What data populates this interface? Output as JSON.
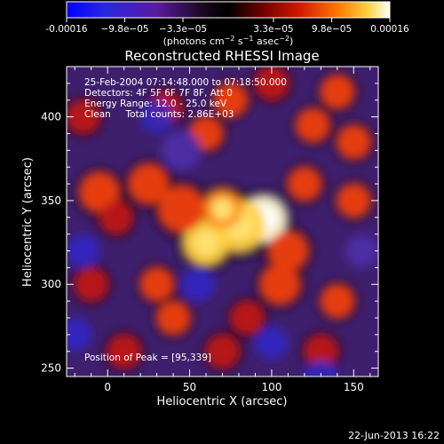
{
  "colorbar": {
    "ticks": [
      "-0.00016",
      "−9.8e−05",
      "−3.3e−05",
      "3.3e−05",
      "9.8e−05",
      "0.00016"
    ],
    "units_prefix": "(photons cm",
    "units_mid": " s",
    "units_suffix": " asec",
    "units_close": ")",
    "units_exp1": "−2",
    "units_exp2": "−1",
    "units_exp3": "−2",
    "vmin": -0.00016,
    "vmax": 0.00016,
    "colormap": [
      "#1a1aff",
      "#3a20c8",
      "#5a1a9a",
      "#2a0a30",
      "#000000",
      "#6a0000",
      "#c01000",
      "#ff5a00",
      "#ffaa20",
      "#ffffff"
    ]
  },
  "footer": {
    "date": "22-Jun-2013 16:22"
  },
  "chart_data": {
    "type": "heatmap",
    "title": "Reconstructed RHESSI Image",
    "xlabel": "Heliocentric X (arcsec)",
    "ylabel": "Heliocentric Y (arcsec)",
    "xlim": [
      -25,
      165
    ],
    "ylim": [
      245,
      430
    ],
    "xticks": [
      0,
      50,
      100,
      150
    ],
    "yticks": [
      250,
      300,
      350,
      400
    ],
    "annotations": [
      "25-Feb-2004 07:14:48.000 to 07:18:50.000",
      "Detectors: 4F 5F 6F 7F 8F, Att 0",
      "Energy Range: 12.0 - 25.0 keV",
      "Clean     Total counts: 2.86E+03"
    ],
    "peak_label": "Position of Peak = [95,339]",
    "peak": [
      95,
      339
    ],
    "sources": [
      [
        95,
        339,
        1.0,
        14
      ],
      [
        80,
        335,
        0.85,
        16
      ],
      [
        60,
        325,
        0.75,
        14
      ],
      [
        70,
        345,
        0.7,
        12
      ],
      [
        45,
        345,
        0.55,
        14
      ],
      [
        25,
        360,
        0.45,
        12
      ],
      [
        -5,
        355,
        0.45,
        12
      ],
      [
        5,
        340,
        0.35,
        10
      ],
      [
        110,
        320,
        0.55,
        12
      ],
      [
        105,
        300,
        0.5,
        12
      ],
      [
        120,
        360,
        0.5,
        10
      ],
      [
        125,
        395,
        0.55,
        10
      ],
      [
        140,
        415,
        0.5,
        10
      ],
      [
        150,
        385,
        0.45,
        10
      ],
      [
        150,
        350,
        0.45,
        10
      ],
      [
        140,
        290,
        0.45,
        10
      ],
      [
        60,
        390,
        0.45,
        10
      ],
      [
        75,
        410,
        0.45,
        10
      ],
      [
        35,
        405,
        0.3,
        10
      ],
      [
        -15,
        400,
        0.3,
        10
      ],
      [
        -10,
        300,
        0.3,
        10
      ],
      [
        30,
        300,
        0.45,
        10
      ],
      [
        40,
        280,
        0.45,
        10
      ],
      [
        85,
        280,
        0.35,
        10
      ],
      [
        10,
        260,
        0.3,
        10
      ],
      [
        70,
        260,
        0.35,
        10
      ],
      [
        130,
        260,
        0.35,
        10
      ],
      [
        100,
        420,
        0.3,
        10
      ],
      [
        30,
        400,
        -0.35,
        10
      ],
      [
        55,
        300,
        -0.25,
        10
      ],
      [
        -15,
        320,
        -0.25,
        10
      ],
      [
        130,
        245,
        -0.3,
        10
      ],
      [
        45,
        380,
        -0.2,
        12
      ],
      [
        100,
        265,
        -0.25,
        10
      ],
      [
        -20,
        270,
        -0.25,
        10
      ],
      [
        155,
        320,
        -0.2,
        10
      ]
    ]
  }
}
